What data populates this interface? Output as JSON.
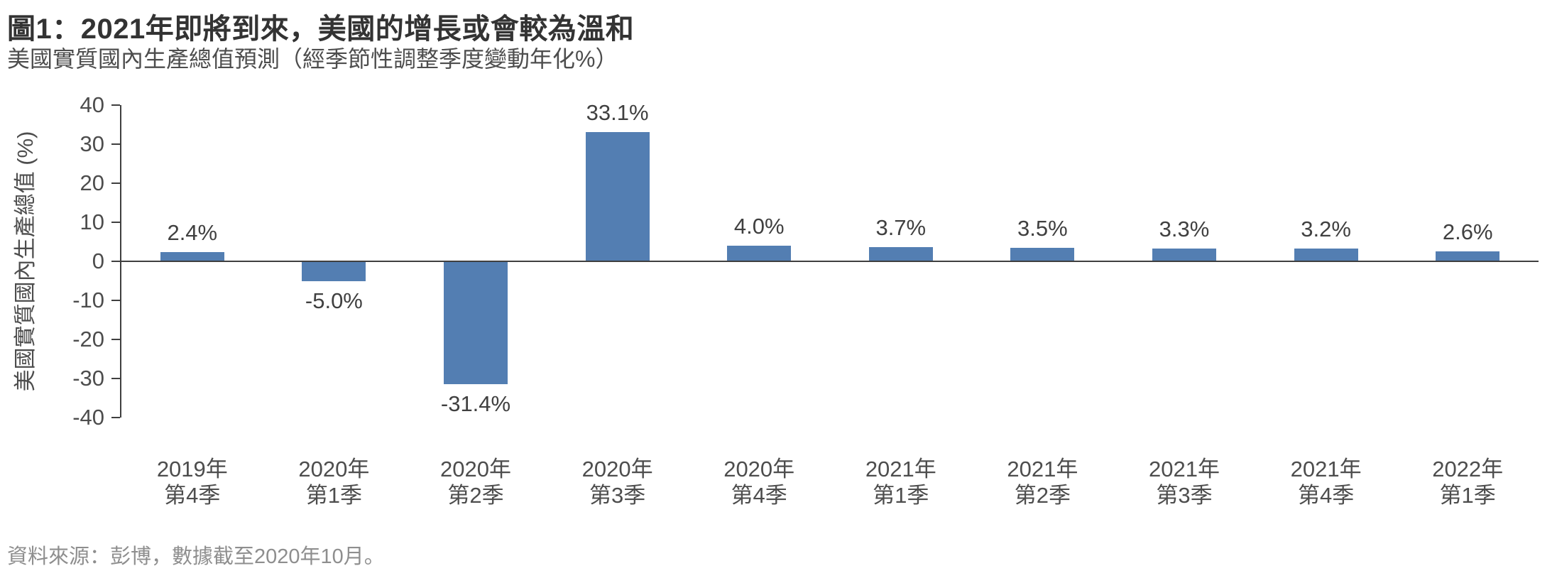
{
  "figure": {
    "title": "圖1：2021年即將到來，美國的增長或會較為溫和",
    "subtitle": "美國實質國內生產總值預測（經季節性調整季度變動年化%）",
    "source": "資料來源：彭博，數據截至2020年10月。"
  },
  "chart_data": {
    "type": "bar",
    "title": "圖1：2021年即將到來，美國的增長或會較為溫和",
    "subtitle": "美國實質國內生產總值預測（經季節性調整季度變動年化%）",
    "xlabel": "",
    "ylabel": "美國實質國內生產總值 (%)",
    "ylim": [
      -40,
      40
    ],
    "y_ticks": [
      40,
      30,
      20,
      10,
      0,
      -10,
      -20,
      -30,
      -40
    ],
    "grid": false,
    "legend": null,
    "bar_color": "#537EB2",
    "categories": [
      "2019年第4季",
      "2020年第1季",
      "2020年第2季",
      "2020年第3季",
      "2020年第4季",
      "2021年第1季",
      "2021年第2季",
      "2021年第3季",
      "2021年第4季",
      "2022年第1季"
    ],
    "category_lines": [
      [
        "2019年",
        "第4季"
      ],
      [
        "2020年",
        "第1季"
      ],
      [
        "2020年",
        "第2季"
      ],
      [
        "2020年",
        "第3季"
      ],
      [
        "2020年",
        "第4季"
      ],
      [
        "2021年",
        "第1季"
      ],
      [
        "2021年",
        "第2季"
      ],
      [
        "2021年",
        "第3季"
      ],
      [
        "2021年",
        "第4季"
      ],
      [
        "2022年",
        "第1季"
      ]
    ],
    "values": [
      2.4,
      -5.0,
      -31.4,
      33.1,
      4.0,
      3.7,
      3.5,
      3.3,
      3.2,
      2.6
    ],
    "value_labels": [
      "2.4%",
      "-5.0%",
      "-31.4%",
      "33.1%",
      "4.0%",
      "3.7%",
      "3.5%",
      "3.3%",
      "3.2%",
      "2.6%"
    ],
    "source": "資料來源：彭博，數據截至2020年10月。"
  }
}
